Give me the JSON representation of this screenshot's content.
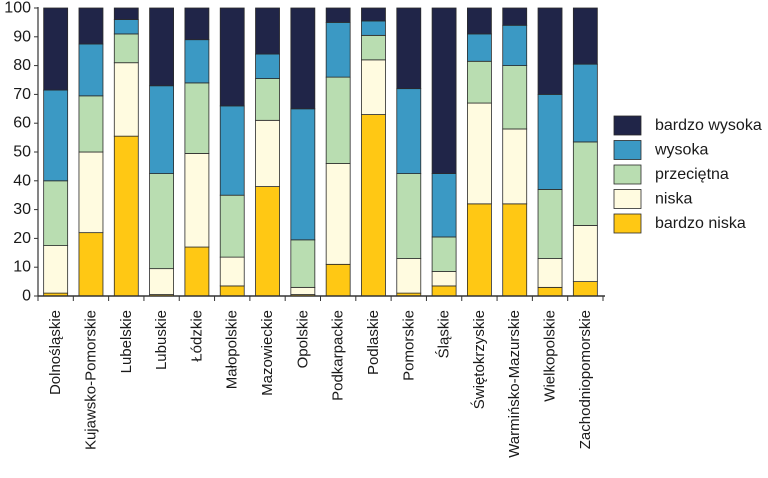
{
  "chart_data": {
    "type": "bar",
    "stacked": true,
    "normalized_percent": true,
    "title": "",
    "xlabel": "",
    "ylabel": "",
    "ylim": [
      0,
      100
    ],
    "yticks": [
      0,
      10,
      20,
      30,
      40,
      50,
      60,
      70,
      80,
      90,
      100
    ],
    "grid": false,
    "legend_position": "right",
    "categories": [
      "Dolnośląskie",
      "Kujawsko-Pomorskie",
      "Lubelskie",
      "Lubuskie",
      "Łódzkie",
      "Małopolskie",
      "Mazowieckie",
      "Opolskie",
      "Podkarpackie",
      "Podlaskie",
      "Pomorskie",
      "Śląskie",
      "Świętokrzyskie",
      "Warmińsko-Mazurskie",
      "Wielkopolskie",
      "Zachodniopomorskie"
    ],
    "series": [
      {
        "name": "bardzo niska",
        "color": "#FFC814",
        "values": [
          1,
          22,
          55.5,
          0.5,
          17,
          3.5,
          38,
          0.5,
          11,
          63,
          1,
          3.5,
          32,
          32,
          3,
          5
        ]
      },
      {
        "name": "niska",
        "color": "#FFFBE0",
        "values": [
          16.5,
          28,
          25.5,
          9,
          32.5,
          10,
          23,
          2.5,
          35,
          19,
          12,
          5,
          35,
          26,
          10,
          19.5
        ]
      },
      {
        "name": "przeciętna",
        "color": "#B9DDB1",
        "values": [
          22.5,
          19.5,
          10,
          33,
          24.5,
          21.5,
          14.5,
          16.5,
          30,
          8.5,
          29.5,
          12,
          14.5,
          22,
          24,
          29
        ]
      },
      {
        "name": "wysoka",
        "color": "#3B99C4",
        "values": [
          31.5,
          18,
          5,
          30.5,
          15,
          31,
          8.5,
          45.5,
          19,
          5,
          29.5,
          22,
          9.5,
          14,
          33,
          27
        ]
      },
      {
        "name": "bardzo wysoka",
        "color": "#202548",
        "values": [
          28.5,
          12.5,
          4,
          27,
          11,
          34,
          16,
          35,
          5,
          4.5,
          28,
          57.5,
          9,
          6,
          30,
          19.5
        ]
      }
    ]
  }
}
